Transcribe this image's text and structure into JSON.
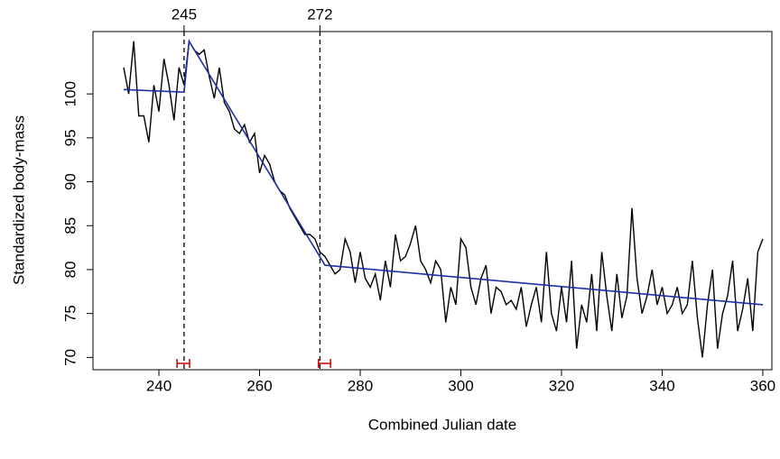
{
  "chart_data": {
    "type": "line",
    "xlabel": "Combined Julian date",
    "ylabel": "Standardized body-mass",
    "xlim": [
      226.9,
      361.8
    ],
    "ylim": [
      68.6,
      107.1
    ],
    "xticks": [
      240,
      260,
      280,
      300,
      320,
      340,
      360
    ],
    "yticks": [
      70,
      75,
      80,
      85,
      90,
      95,
      100
    ],
    "breakpoints": [
      245,
      272
    ],
    "breakpoint_ci": [
      [
        243.6,
        246.1
      ],
      [
        271.7,
        274.1
      ]
    ],
    "ci_color": "#cc0000",
    "series": [
      {
        "name": "observed",
        "color": "#000000",
        "x": [
          233,
          234,
          235,
          236,
          237,
          238,
          239,
          240,
          241,
          242,
          243,
          244,
          245,
          246,
          247,
          248,
          249,
          250,
          251,
          252,
          253,
          254,
          255,
          256,
          257,
          258,
          259,
          260,
          261,
          262,
          263,
          264,
          265,
          266,
          267,
          268,
          269,
          270,
          271,
          272,
          273,
          274,
          275,
          276,
          277,
          278,
          279,
          280,
          281,
          282,
          283,
          284,
          285,
          286,
          287,
          288,
          289,
          290,
          291,
          292,
          293,
          294,
          295,
          296,
          297,
          298,
          299,
          300,
          301,
          302,
          303,
          304,
          305,
          306,
          307,
          308,
          309,
          310,
          311,
          312,
          313,
          314,
          315,
          316,
          317,
          318,
          319,
          320,
          321,
          322,
          323,
          324,
          325,
          326,
          327,
          328,
          329,
          330,
          331,
          332,
          333,
          334,
          335,
          336,
          337,
          338,
          339,
          340,
          341,
          342,
          343,
          344,
          345,
          346,
          347,
          348,
          349,
          350,
          351,
          352,
          353,
          354,
          355,
          356,
          357,
          358,
          359,
          360
        ],
        "values": [
          103,
          100,
          106,
          97.5,
          97.5,
          94.5,
          101,
          98,
          104,
          101,
          97,
          103,
          101,
          106,
          105,
          104.5,
          105,
          102,
          99.5,
          103,
          99,
          98,
          96,
          95.5,
          96.5,
          94.5,
          95.5,
          91,
          93,
          92,
          90,
          89,
          88.5,
          87,
          86,
          85,
          84,
          84,
          83.5,
          82,
          81.5,
          80.5,
          79.5,
          80,
          83.5,
          82,
          78.5,
          82,
          79,
          78,
          79.5,
          76.5,
          81,
          78,
          84,
          81,
          81.5,
          83,
          85,
          81,
          80,
          78.5,
          81,
          80,
          74,
          78,
          76,
          83.5,
          82.5,
          78,
          76,
          79,
          80.5,
          75,
          78,
          77.5,
          76,
          76.5,
          75.5,
          78,
          73.5,
          76,
          78,
          74,
          82,
          75,
          73,
          78,
          74,
          81,
          71,
          76,
          74,
          79.5,
          73,
          82,
          77,
          73,
          79.5,
          74.5,
          77,
          87,
          79,
          75,
          77,
          80,
          76,
          78,
          75,
          76,
          78,
          75,
          76,
          81,
          74.5,
          70,
          76,
          80,
          71,
          75,
          77,
          81,
          73,
          75.5,
          79,
          73,
          82,
          83.5
        ]
      },
      {
        "name": "fit",
        "color": "#1f2fa8",
        "x": [
          233,
          245,
          246,
          273,
          360
        ],
        "values": [
          100.5,
          100.2,
          106,
          80.5,
          76
        ]
      }
    ]
  }
}
